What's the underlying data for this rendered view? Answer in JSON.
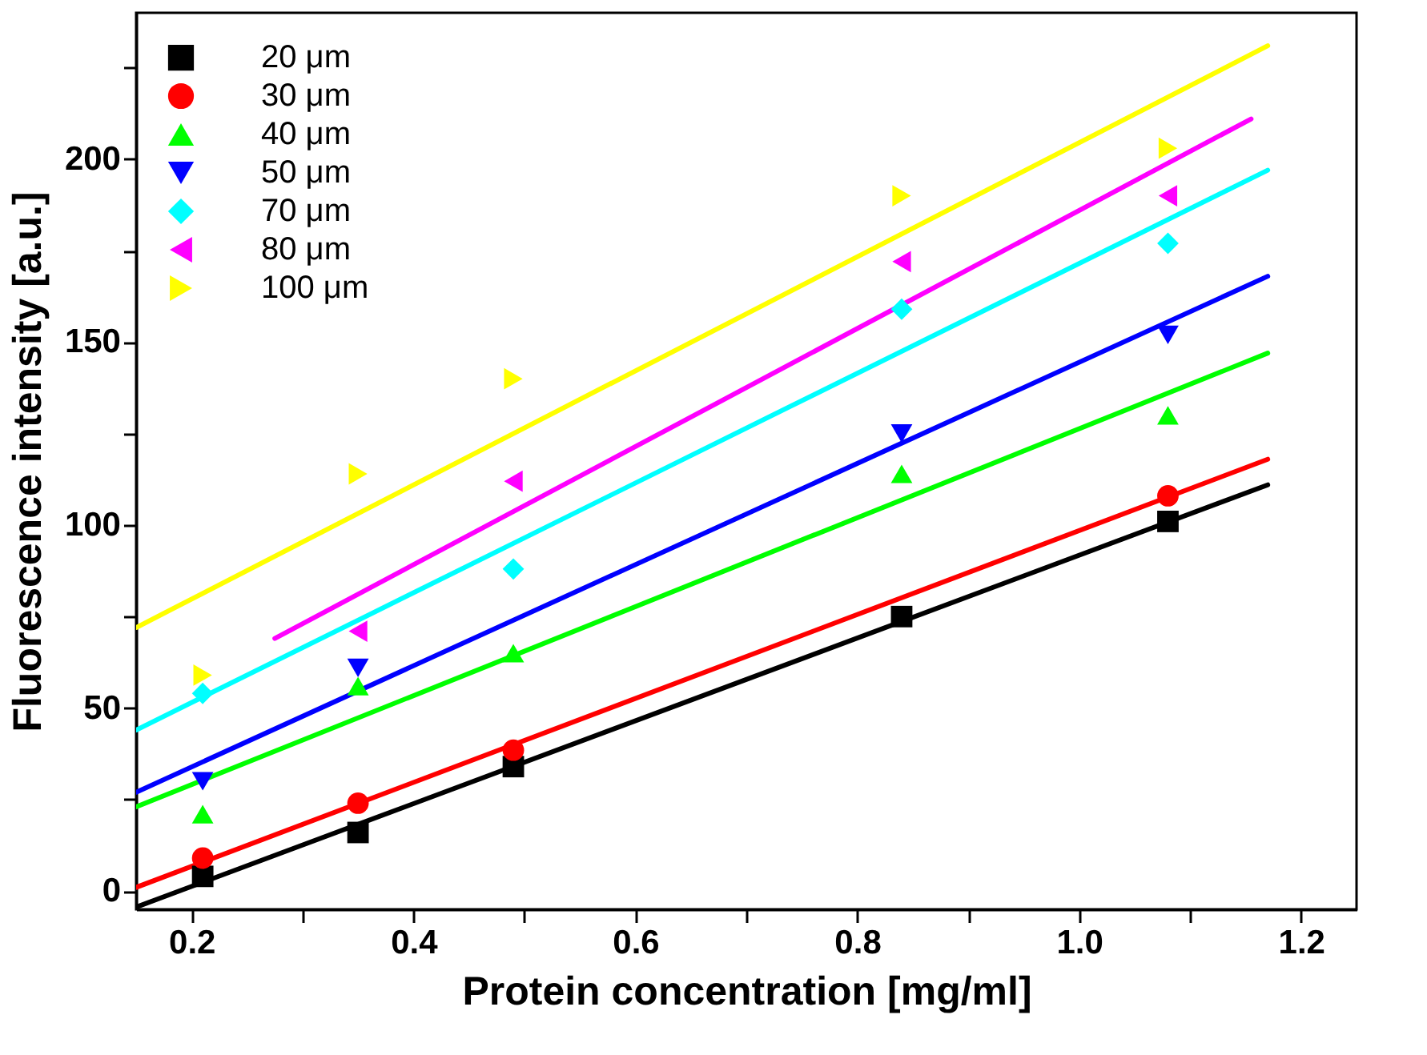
{
  "chart_data": {
    "type": "scatter",
    "xlabel": "Protein concentration [mg/ml]",
    "ylabel": "Fluorescence intensity [a.u.]",
    "xlim": [
      0.15,
      1.25
    ],
    "ylim": [
      -5,
      240
    ],
    "xticks": [
      0.2,
      {
        "value": 0.3,
        "label": null
      },
      0.4,
      {
        "value": 0.5,
        "label": null
      },
      0.6,
      {
        "value": 0.7,
        "label": null
      },
      0.8,
      {
        "value": 0.9,
        "label": null
      },
      {
        "value": 1,
        "label": "1.0"
      },
      {
        "value": 1.1,
        "label": null
      },
      1.2
    ],
    "yticks": [
      0,
      {
        "value": 25,
        "label": null
      },
      50,
      {
        "value": 75,
        "label": null
      },
      100,
      {
        "value": 125,
        "label": null
      },
      150,
      {
        "value": 175,
        "label": null
      },
      200,
      {
        "value": 225,
        "label": null
      }
    ],
    "grid": false,
    "legend": "top left",
    "series": [
      {
        "name": "20 μm",
        "marker": "square",
        "color": "#000000",
        "x": [
          0.21,
          0.35,
          0.49,
          0.84,
          1.08
        ],
        "values": [
          4,
          16,
          34,
          75,
          101
        ]
      },
      {
        "name": "30 μm",
        "marker": "circle",
        "color": "#ff0000",
        "x": [
          0.21,
          0.35,
          0.49,
          0.84,
          1.08
        ],
        "values": [
          9,
          24,
          38.5,
          null,
          108
        ]
      },
      {
        "name": "40 μm",
        "marker": "triangle-up",
        "color": "#00ff00",
        "x": [
          0.21,
          0.35,
          0.49,
          0.84,
          1.08
        ],
        "values": [
          21,
          56,
          65,
          114,
          130
        ]
      },
      {
        "name": "50 μm",
        "marker": "triangle-down",
        "color": "#0000ff",
        "x": [
          0.21,
          0.35,
          0.49,
          0.84,
          1.08
        ],
        "values": [
          30,
          61,
          null,
          125,
          152
        ]
      },
      {
        "name": "70 μm",
        "marker": "diamond",
        "color": "#00ffff",
        "x": [
          0.21,
          0.35,
          0.49,
          0.84,
          1.08
        ],
        "values": [
          54,
          null,
          88,
          159,
          177
        ]
      },
      {
        "name": "80 μm",
        "marker": "triangle-left",
        "color": "#ff00ff",
        "x": [
          0.35,
          0.49,
          0.84,
          1.08
        ],
        "values": [
          71,
          112,
          172,
          190
        ]
      },
      {
        "name": "100 μm",
        "marker": "triangle-right",
        "color": "#ffff00",
        "x": [
          0.21,
          0.35,
          0.49,
          0.84,
          1.08
        ],
        "values": [
          59,
          114,
          140,
          190,
          203
        ]
      },
      {
        "type": "line",
        "color": "#000000",
        "x": [
          0.15,
          1.17
        ],
        "values": [
          -4.4,
          111
        ]
      },
      {
        "type": "line",
        "color": "#ff0000",
        "x": [
          0.15,
          1.17
        ],
        "values": [
          1,
          118
        ]
      },
      {
        "type": "line",
        "color": "#00ff00",
        "x": [
          0.15,
          1.17
        ],
        "values": [
          23,
          147
        ]
      },
      {
        "type": "line",
        "color": "#0000ff",
        "x": [
          0.15,
          1.17
        ],
        "values": [
          27,
          168
        ]
      },
      {
        "type": "line",
        "color": "#00ffff",
        "x": [
          0.15,
          1.17
        ],
        "values": [
          44,
          197
        ]
      },
      {
        "type": "line",
        "color": "#ff00ff",
        "x": [
          0.275,
          1.155
        ],
        "values": [
          69,
          211
        ]
      },
      {
        "type": "line",
        "color": "#ffff00",
        "x": [
          0.15,
          1.17
        ],
        "values": [
          72,
          231
        ]
      }
    ]
  }
}
